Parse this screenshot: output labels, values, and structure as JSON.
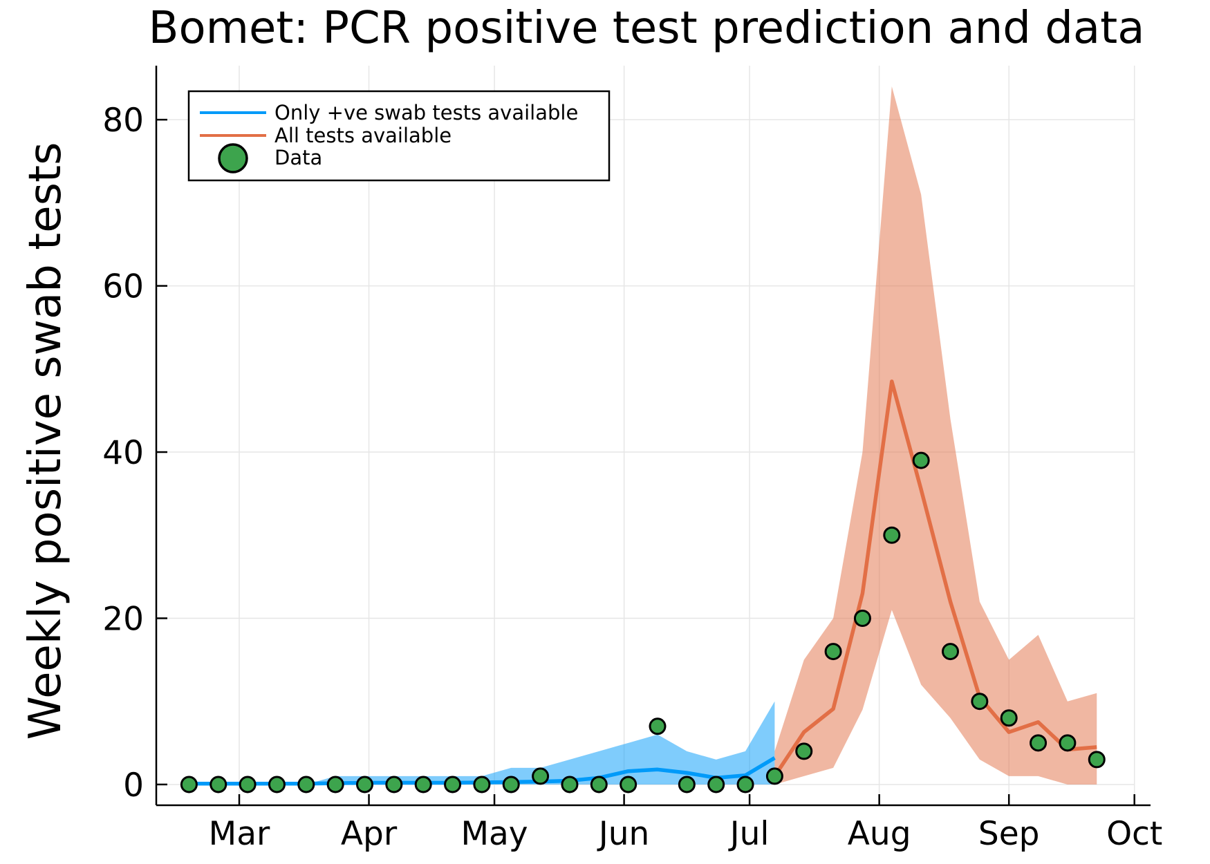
{
  "chart_data": {
    "type": "line",
    "title": "Bomet: PCR positive test prediction and data",
    "xlabel": "",
    "ylabel": "Weekly positive swab tests",
    "x_tick_labels": [
      "Mar",
      "Apr",
      "May",
      "Jun",
      "Jul",
      "Aug",
      "Sep",
      "Oct"
    ],
    "x_tick_dates": [
      "2021-03-01",
      "2021-04-01",
      "2021-05-01",
      "2021-06-01",
      "2021-07-01",
      "2021-08-01",
      "2021-09-01",
      "2021-10-01"
    ],
    "y_ticks": [
      0,
      20,
      40,
      60,
      80
    ],
    "xlim": [
      "2021-02-11",
      "2021-10-01"
    ],
    "ylim": [
      -2.5,
      86.5
    ],
    "grid": true,
    "legend_position": "top-left",
    "legend_entries": [
      "Only +ve swab tests available",
      "All tests available",
      "Data"
    ],
    "series": [
      {
        "name": "Only +ve swab tests available",
        "kind": "line-with-band",
        "color": "#009af9",
        "band_color": "#009af9",
        "x": [
          "2021-02-17",
          "2021-02-24",
          "2021-03-03",
          "2021-03-10",
          "2021-03-17",
          "2021-03-24",
          "2021-03-31",
          "2021-04-07",
          "2021-04-14",
          "2021-04-21",
          "2021-04-28",
          "2021-05-05",
          "2021-05-12",
          "2021-05-19",
          "2021-05-26",
          "2021-06-02",
          "2021-06-09",
          "2021-06-16",
          "2021-06-23",
          "2021-06-30",
          "2021-07-07"
        ],
        "y": [
          0.1,
          0.1,
          0.1,
          0.1,
          0.1,
          0.15,
          0.2,
          0.2,
          0.2,
          0.2,
          0.25,
          0.3,
          0.35,
          0.45,
          0.8,
          1.6,
          1.8,
          1.4,
          0.8,
          1.1,
          3.2
        ],
        "lower": [
          0,
          0,
          0,
          0,
          0,
          0,
          0,
          0,
          0,
          0,
          0,
          0,
          0,
          0,
          0,
          0,
          0,
          0,
          0,
          0,
          0
        ],
        "upper": [
          0,
          0,
          0,
          0,
          0,
          1,
          1,
          1,
          1,
          1,
          1,
          2,
          2,
          3,
          4,
          5,
          6,
          4,
          3,
          4,
          10
        ]
      },
      {
        "name": "All tests available",
        "kind": "line-with-band",
        "color": "#e26f46",
        "band_color": "#e26f46",
        "x": [
          "2021-07-07",
          "2021-07-14",
          "2021-07-21",
          "2021-07-28",
          "2021-08-04",
          "2021-08-11",
          "2021-08-18",
          "2021-08-25",
          "2021-09-01",
          "2021-09-08",
          "2021-09-15",
          "2021-09-22"
        ],
        "y": [
          1.0,
          6.3,
          9.1,
          23,
          48.5,
          35.5,
          22,
          10.5,
          6.3,
          7.5,
          4.2,
          4.5
        ],
        "lower": [
          0,
          1,
          2,
          9,
          21,
          12,
          8,
          3,
          1,
          1,
          0,
          0
        ],
        "upper": [
          4,
          15,
          20,
          40,
          84,
          71,
          44,
          22,
          15,
          18,
          10,
          11
        ]
      },
      {
        "name": "Data",
        "kind": "scatter",
        "color": "#3da44d",
        "x": [
          "2021-02-17",
          "2021-02-24",
          "2021-03-03",
          "2021-03-10",
          "2021-03-17",
          "2021-03-24",
          "2021-03-31",
          "2021-04-07",
          "2021-04-14",
          "2021-04-21",
          "2021-04-28",
          "2021-05-05",
          "2021-05-12",
          "2021-05-19",
          "2021-05-26",
          "2021-06-02",
          "2021-06-09",
          "2021-06-16",
          "2021-06-23",
          "2021-06-30",
          "2021-07-07",
          "2021-07-14",
          "2021-07-21",
          "2021-07-28",
          "2021-08-04",
          "2021-08-11",
          "2021-08-18",
          "2021-08-25",
          "2021-09-01",
          "2021-09-08",
          "2021-09-15",
          "2021-09-22"
        ],
        "y": [
          0,
          0,
          0,
          0,
          0,
          0,
          0,
          0,
          0,
          0,
          0,
          0,
          1,
          0,
          0,
          0,
          7,
          0,
          0,
          0,
          1,
          4,
          16,
          20,
          30,
          39,
          16,
          10,
          8,
          5,
          5,
          3
        ]
      }
    ]
  }
}
